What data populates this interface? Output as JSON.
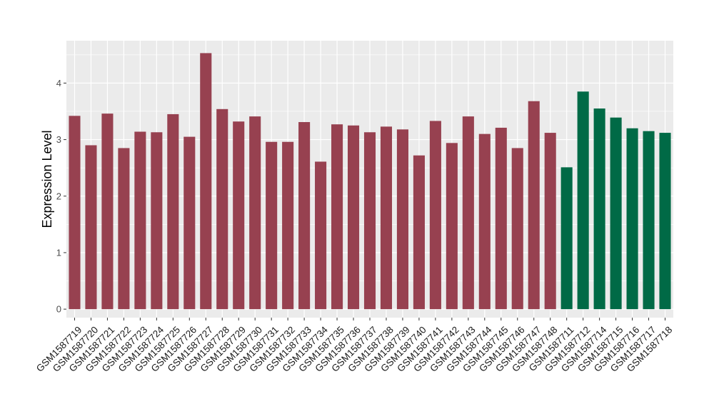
{
  "chart_data": {
    "type": "bar",
    "title": "",
    "xlabel": "",
    "ylabel": "Expression Level",
    "ylim": [
      -0.15,
      4.75
    ],
    "yticks": [
      0,
      1,
      2,
      3,
      4
    ],
    "grid": true,
    "background": "#ebebeb",
    "gridColor": "#ffffff",
    "categories": [
      "GSM1587719",
      "GSM1587720",
      "GSM1587721",
      "GSM1587722",
      "GSM1587723",
      "GSM1587724",
      "GSM1587725",
      "GSM1587726",
      "GSM1587727",
      "GSM1587728",
      "GSM1587729",
      "GSM1587730",
      "GSM1587731",
      "GSM1587732",
      "GSM1587733",
      "GSM1587734",
      "GSM1587735",
      "GSM1587736",
      "GSM1587737",
      "GSM1587738",
      "GSM1587739",
      "GSM1587740",
      "GSM1587741",
      "GSM1587742",
      "GSM1587743",
      "GSM1587744",
      "GSM1587745",
      "GSM1587746",
      "GSM1587747",
      "GSM1587748",
      "GSM1587711",
      "GSM1587712",
      "GSM1587714",
      "GSM1587715",
      "GSM1587716",
      "GSM1587717",
      "GSM1587718"
    ],
    "values": [
      3.42,
      2.9,
      3.46,
      2.85,
      3.14,
      3.13,
      3.45,
      3.05,
      4.53,
      3.54,
      3.32,
      3.41,
      2.96,
      2.96,
      3.31,
      2.61,
      3.27,
      3.25,
      3.13,
      3.23,
      3.18,
      2.72,
      3.33,
      2.94,
      3.41,
      3.1,
      3.21,
      2.85,
      3.68,
      3.12,
      2.51,
      3.85,
      3.55,
      3.39,
      3.2,
      3.15,
      3.12
    ],
    "colors": [
      "#974150",
      "#974150",
      "#974150",
      "#974150",
      "#974150",
      "#974150",
      "#974150",
      "#974150",
      "#974150",
      "#974150",
      "#974150",
      "#974150",
      "#974150",
      "#974150",
      "#974150",
      "#974150",
      "#974150",
      "#974150",
      "#974150",
      "#974150",
      "#974150",
      "#974150",
      "#974150",
      "#974150",
      "#974150",
      "#974150",
      "#974150",
      "#974150",
      "#974150",
      "#974150",
      "#006a46",
      "#006a46",
      "#006a46",
      "#006a46",
      "#006a46",
      "#006a46",
      "#006a46"
    ]
  }
}
